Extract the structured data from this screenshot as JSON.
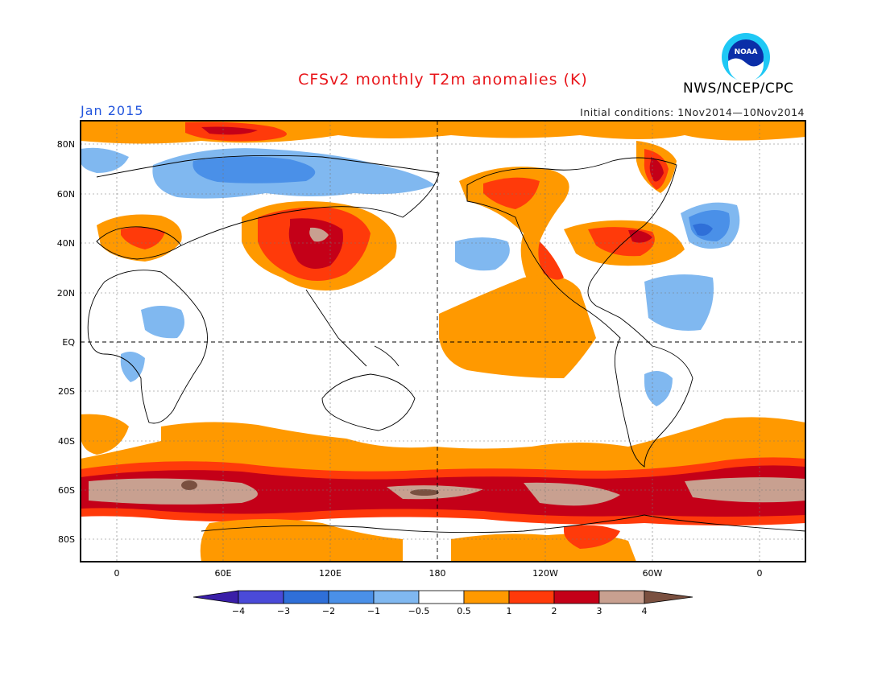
{
  "title": "CFSv2 monthly T2m anomalies (K)",
  "valid_month": "Jan 2015",
  "initial_conditions": "Initial conditions: 1Nov2014—10Nov2014",
  "agency": "NWS/NCEP/CPC",
  "logo_text": "NOAA",
  "map": {
    "lat_labels": [
      "80N",
      "60N",
      "40N",
      "20N",
      "EQ",
      "20S",
      "40S",
      "60S",
      "80S"
    ],
    "lon_labels": [
      "0",
      "60E",
      "120E",
      "180",
      "120W",
      "60W",
      "0"
    ]
  },
  "legend": {
    "labels": [
      "−4",
      "−3",
      "−2",
      "−1",
      "−0.5",
      "0.5",
      "1",
      "2",
      "3",
      "4"
    ],
    "colors": [
      "#3a1fa8",
      "#4a4ad8",
      "#2f6fd8",
      "#4a90e8",
      "#80b8f0",
      "#ffffff",
      "#ff9900",
      "#ff3a0a",
      "#c40018",
      "#c8a090",
      "#7a5040"
    ]
  }
}
